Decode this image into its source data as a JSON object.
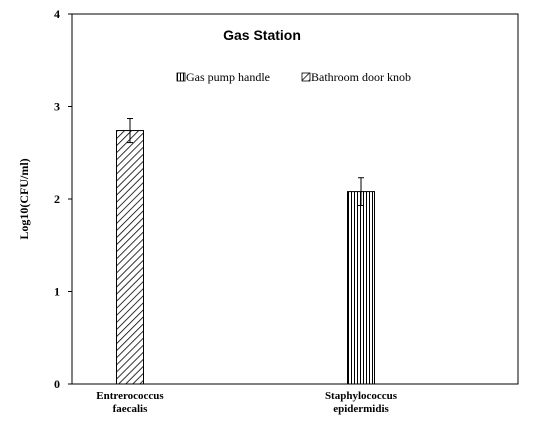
{
  "chart_data": {
    "type": "bar",
    "title": "Gas Station",
    "xlabel": "",
    "ylabel": "Log10(CFU/ml)",
    "ylim": [
      0,
      4
    ],
    "yticks": [
      0,
      1,
      2,
      3,
      4
    ],
    "categories": [
      [
        "Entrerococcus",
        "faecalis"
      ],
      [
        "Staphylococcus",
        "epidermidis"
      ]
    ],
    "series": [
      {
        "name": "Gas pump handle",
        "pattern": "vertical-lines",
        "values": [
          null,
          2.08
        ],
        "errors": [
          null,
          0.15
        ]
      },
      {
        "name": "Bathroom door knob",
        "pattern": "diagonal-lines",
        "values": [
          2.74,
          null
        ],
        "errors": [
          null,
          null
        ],
        "errors_list": [
          0.13,
          null
        ]
      }
    ],
    "legend_position": "top-center",
    "grid": false
  }
}
